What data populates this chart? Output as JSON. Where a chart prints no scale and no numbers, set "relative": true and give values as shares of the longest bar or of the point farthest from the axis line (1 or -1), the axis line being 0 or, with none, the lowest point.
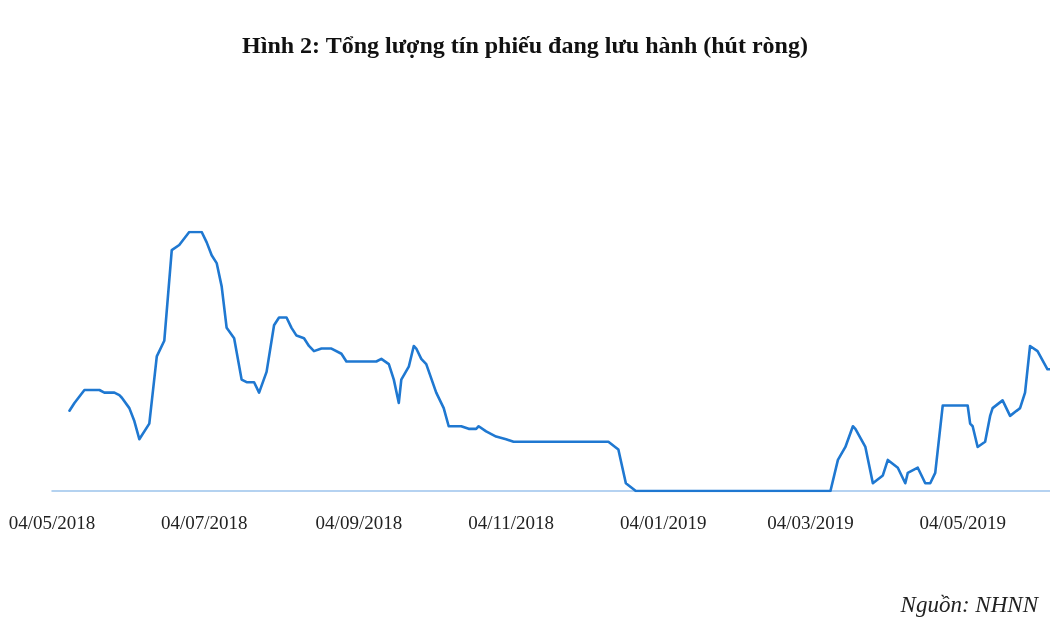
{
  "chart_data": {
    "type": "line",
    "title": "Hình 2: Tổng lượng tín phiếu đang lưu hành (hút ròng)",
    "annotations": [
      "Nguồn: NHNN"
    ],
    "relative": true,
    "tick_labels": "x",
    "marker": "none",
    "line_style": "solid",
    "color": "#1f78d1",
    "xlim": [
      "2018-05-04",
      "2019-06-08"
    ],
    "xticks": [
      {
        "value": "2018-05-04",
        "label": "04/05/2018"
      },
      {
        "value": "2018-07-04",
        "label": "04/07/2018"
      },
      {
        "value": "2018-09-04",
        "label": "04/09/2018"
      },
      {
        "value": "2018-11-04",
        "label": "04/11/2018"
      },
      {
        "value": "2019-01-04",
        "label": "04/01/2019"
      },
      {
        "value": "2019-03-04",
        "label": "04/03/2019"
      },
      {
        "value": "2019-05-04",
        "label": "04/05/2019"
      }
    ],
    "x": [
      "2018-05-11",
      "2018-05-13",
      "2018-05-17",
      "2018-05-23",
      "2018-05-25",
      "2018-05-29",
      "2018-05-31",
      "2018-06-01",
      "2018-06-04",
      "2018-06-06",
      "2018-06-08",
      "2018-06-12",
      "2018-06-15",
      "2018-06-18",
      "2018-06-21",
      "2018-06-24",
      "2018-06-28",
      "2018-07-03",
      "2018-07-05",
      "2018-07-07",
      "2018-07-09",
      "2018-07-11",
      "2018-07-13",
      "2018-07-16",
      "2018-07-19",
      "2018-07-21",
      "2018-07-24",
      "2018-07-26",
      "2018-07-29",
      "2018-08-01",
      "2018-08-03",
      "2018-08-06",
      "2018-08-08",
      "2018-08-10",
      "2018-08-13",
      "2018-08-15",
      "2018-08-17",
      "2018-08-20",
      "2018-08-24",
      "2018-08-28",
      "2018-08-30",
      "2018-09-03",
      "2018-09-11",
      "2018-09-13",
      "2018-09-16",
      "2018-09-18",
      "2018-09-20",
      "2018-09-21",
      "2018-09-24",
      "2018-09-26",
      "2018-09-27",
      "2018-09-29",
      "2018-10-01",
      "2018-10-05",
      "2018-10-08",
      "2018-10-10",
      "2018-10-15",
      "2018-10-18",
      "2018-10-21",
      "2018-10-22",
      "2018-10-25",
      "2018-10-29",
      "2018-11-02",
      "2018-11-05",
      "2018-12-13",
      "2018-12-17",
      "2018-12-20",
      "2018-12-24",
      "2019-03-12",
      "2019-03-15",
      "2019-03-18",
      "2019-03-21",
      "2019-03-22",
      "2019-03-26",
      "2019-03-29",
      "2019-04-02",
      "2019-04-04",
      "2019-04-08",
      "2019-04-11",
      "2019-04-12",
      "2019-04-16",
      "2019-04-18",
      "2019-04-19",
      "2019-04-21",
      "2019-04-23",
      "2019-04-26",
      "2019-05-06",
      "2019-05-07",
      "2019-05-08",
      "2019-05-10",
      "2019-05-13",
      "2019-05-15",
      "2019-05-16",
      "2019-05-20",
      "2019-05-23",
      "2019-05-27",
      "2019-05-29",
      "2019-05-31",
      "2019-06-03",
      "2019-06-07",
      "2019-06-08"
    ],
    "values": [
      0.31,
      0.34,
      0.39,
      0.39,
      0.38,
      0.38,
      0.37,
      0.36,
      0.32,
      0.27,
      0.2,
      0.26,
      0.52,
      0.58,
      0.93,
      0.95,
      1,
      1,
      0.96,
      0.91,
      0.88,
      0.79,
      0.63,
      0.59,
      0.43,
      0.42,
      0.42,
      0.38,
      0.46,
      0.64,
      0.67,
      0.67,
      0.63,
      0.6,
      0.59,
      0.56,
      0.54,
      0.55,
      0.55,
      0.53,
      0.5,
      0.5,
      0.5,
      0.51,
      0.49,
      0.43,
      0.34,
      0.43,
      0.48,
      0.56,
      0.55,
      0.51,
      0.49,
      0.38,
      0.32,
      0.25,
      0.25,
      0.24,
      0.24,
      0.25,
      0.23,
      0.21,
      0.2,
      0.19,
      0.19,
      0.16,
      0.03,
      0,
      0,
      0.12,
      0.17,
      0.25,
      0.24,
      0.17,
      0.03,
      0.06,
      0.12,
      0.09,
      0.03,
      0.07,
      0.09,
      0.05,
      0.03,
      0.03,
      0.07,
      0.33,
      0.33,
      0.26,
      0.25,
      0.17,
      0.19,
      0.29,
      0.32,
      0.35,
      0.29,
      0.32,
      0.38,
      0.56,
      0.54,
      0.47,
      0.47
    ]
  }
}
